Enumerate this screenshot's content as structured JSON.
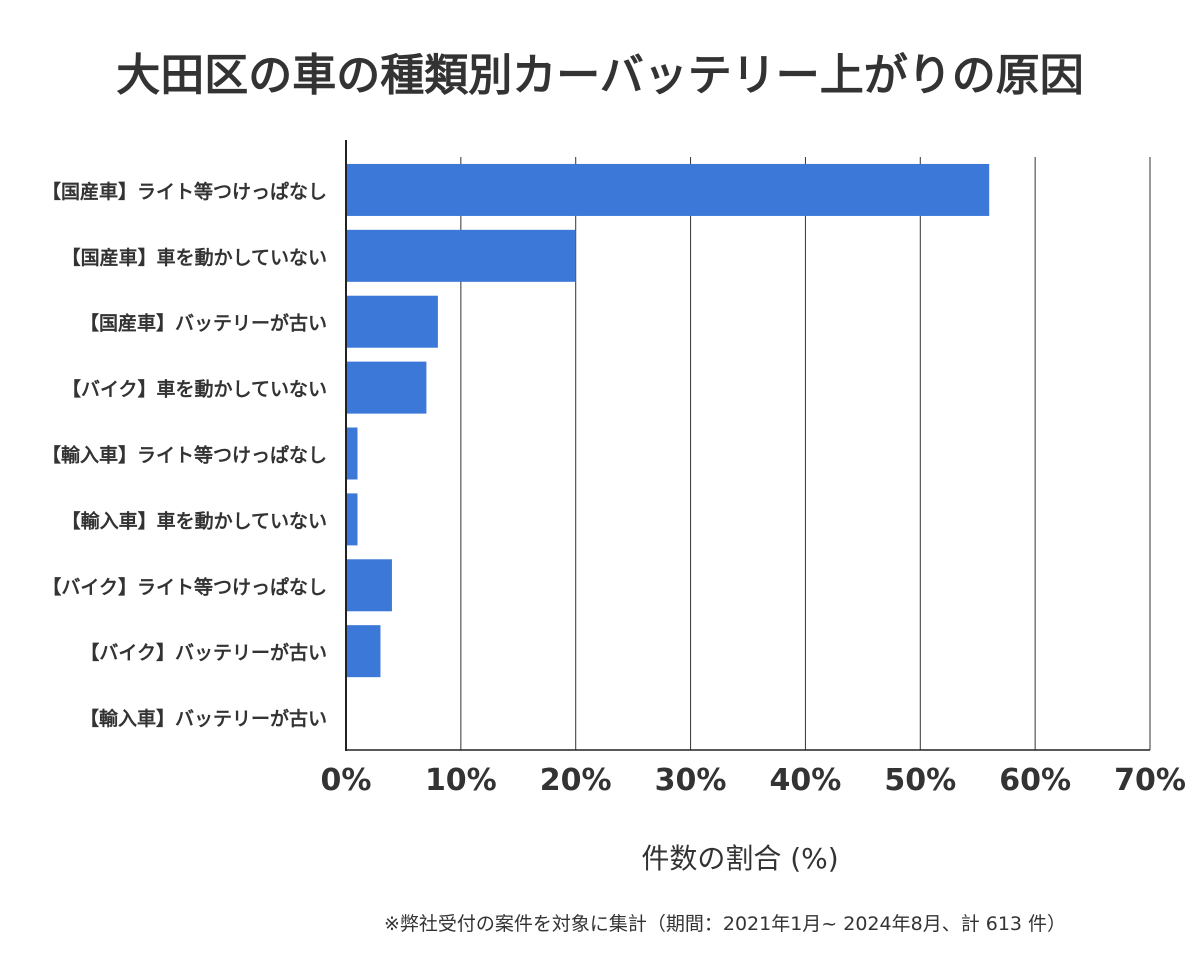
{
  "chart_data": {
    "type": "bar",
    "orientation": "horizontal",
    "title": "大田区の車の種類別カーバッテリー上がりの原因",
    "xlabel": "件数の割合 (%)",
    "ylabel": "",
    "categories": [
      "【国産車】ライト等つけっぱなし",
      "【国産車】車を動かしていない",
      "【国産車】バッテリーが古い",
      "【バイク】車を動かしていない",
      "【輸入車】ライト等つけっぱなし",
      "【輸入車】車を動かしていない",
      "【バイク】ライト等つけっぱなし",
      "【バイク】バッテリーが古い",
      "【輸入車】バッテリーが古い"
    ],
    "values": [
      56,
      20,
      8,
      7,
      1,
      1,
      4,
      3,
      0
    ],
    "xlim": [
      0,
      70
    ],
    "xticks": [
      0,
      10,
      20,
      30,
      40,
      50,
      60,
      70
    ],
    "xtick_labels": [
      "0%",
      "10%",
      "20%",
      "30%",
      "40%",
      "50%",
      "60%",
      "70%"
    ],
    "grid": "vertical",
    "bar_color": "#3c78d8",
    "footnote": "※弊社受付の案件を対象に集計（期間：2021年1月~ 2024年8月、計 613 件）"
  }
}
